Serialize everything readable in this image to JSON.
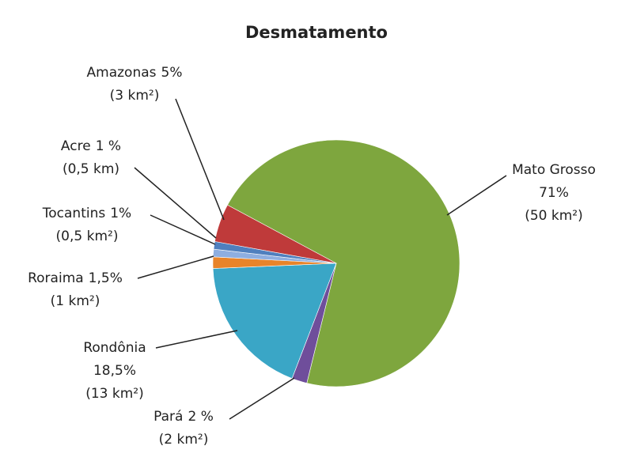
{
  "chart_data": {
    "type": "pie",
    "title": "Desmatamento",
    "categories": [
      "Mato Grosso",
      "Pará",
      "Rondônia",
      "Roraima",
      "Tocantins",
      "Acre",
      "Amazonas"
    ],
    "values": [
      71,
      2,
      18.5,
      1.5,
      1,
      1,
      5
    ],
    "value_labels": [
      "71%",
      "2 %",
      "18,5%",
      "1,5%",
      "1%",
      "1 %",
      "5%"
    ],
    "area_labels": [
      "(50 km²)",
      "(2 km²)",
      "(13 km²)",
      "(1 km²)",
      "(0,5 km²)",
      "(0,5 km)",
      "(3 km²)"
    ],
    "colors": [
      "#7ea63e",
      "#6f4e9b",
      "#3aa6c6",
      "#e8842a",
      "#8eaee0",
      "#4f7fbe",
      "#bf3a3a"
    ]
  }
}
